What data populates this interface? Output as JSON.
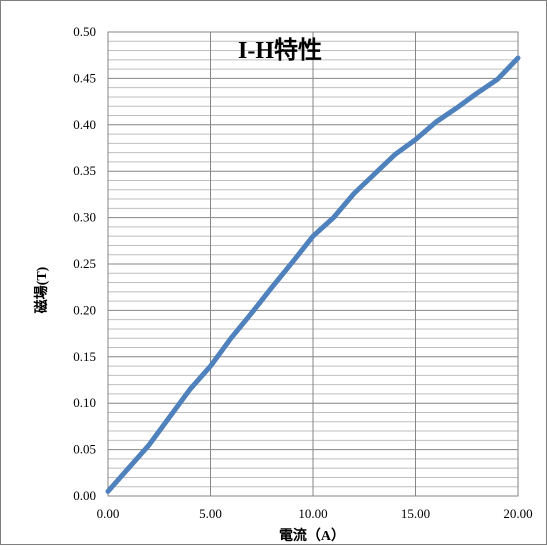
{
  "chart_data": {
    "type": "line",
    "title": "I-H特性",
    "xlabel": "電流（A）",
    "ylabel": "磁場(T)",
    "xlim": [
      0,
      20
    ],
    "ylim": [
      0,
      0.5
    ],
    "x_ticks": [
      "0.00",
      "5.00",
      "10.00",
      "15.00",
      "20.00"
    ],
    "y_ticks": [
      "0.00",
      "0.05",
      "0.10",
      "0.15",
      "0.20",
      "0.25",
      "0.30",
      "0.35",
      "0.40",
      "0.45",
      "0.50"
    ],
    "grid": true,
    "legend": "none",
    "series": [
      {
        "color": "#4f81bd",
        "x": [
          0,
          1,
          2,
          3,
          4,
          5,
          6,
          7,
          8,
          9,
          10,
          11,
          12,
          13,
          14,
          15,
          16,
          17,
          18,
          19,
          20
        ],
        "y": [
          0.005,
          0.03,
          0.055,
          0.085,
          0.115,
          0.14,
          0.17,
          0.197,
          0.225,
          0.252,
          0.28,
          0.3,
          0.326,
          0.347,
          0.368,
          0.384,
          0.403,
          0.418,
          0.434,
          0.449,
          0.472
        ]
      }
    ]
  }
}
